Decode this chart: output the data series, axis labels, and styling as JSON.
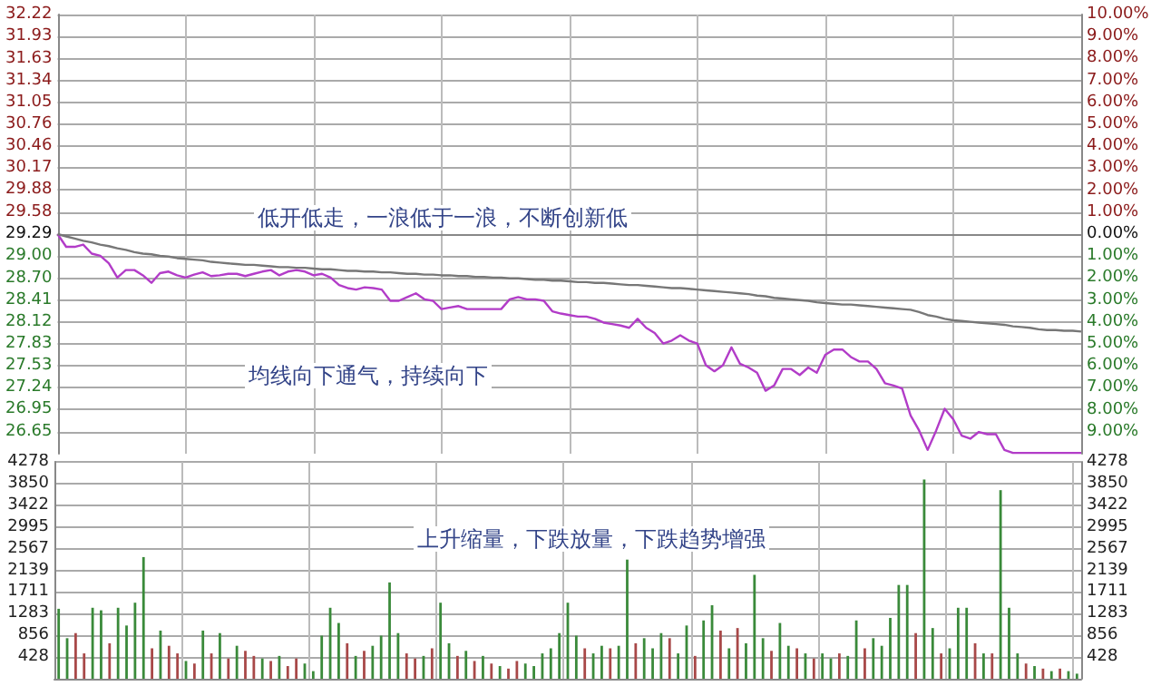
{
  "chart_data": [
    {
      "type": "line",
      "categories": [
        null,
        null,
        null,
        null,
        null,
        null,
        null,
        null,
        null,
        null,
        null,
        null,
        null,
        null,
        null,
        null,
        null,
        null,
        null,
        null,
        null,
        null,
        null,
        null,
        null,
        null,
        null,
        null,
        null,
        null,
        null,
        null,
        null,
        null,
        null,
        null,
        null,
        null,
        null,
        null,
        null,
        null,
        null,
        null,
        null,
        null,
        null,
        null,
        null,
        null,
        null,
        null,
        null,
        null,
        null,
        null,
        null,
        null,
        null,
        null,
        null,
        null,
        null,
        null,
        null,
        null,
        null,
        null,
        null,
        null,
        null,
        null,
        null,
        null,
        null,
        null,
        null,
        null,
        null,
        null,
        null,
        null,
        null,
        null,
        null,
        null,
        null,
        null,
        null,
        null,
        null,
        null,
        null,
        null,
        null,
        null,
        null,
        null,
        null,
        null,
        null,
        null,
        null,
        null,
        null,
        null,
        null,
        null,
        null,
        null,
        null,
        null,
        null,
        null,
        null,
        null,
        null,
        null,
        null,
        null,
        null
      ],
      "series": [
        {
          "color": "#b23cc8",
          "values": [
            29.29,
            29.12,
            29.12,
            29.15,
            29.03,
            29.0,
            28.9,
            28.71,
            28.81,
            28.81,
            28.74,
            28.64,
            28.77,
            28.79,
            28.74,
            28.71,
            28.75,
            28.78,
            28.73,
            28.74,
            28.76,
            28.76,
            28.73,
            28.76,
            28.79,
            28.81,
            28.74,
            28.79,
            28.81,
            28.79,
            28.74,
            28.76,
            28.71,
            28.61,
            28.57,
            28.55,
            28.58,
            28.57,
            28.55,
            28.4,
            28.4,
            28.45,
            28.5,
            28.42,
            28.4,
            28.29,
            28.31,
            28.33,
            28.29,
            28.29,
            28.29,
            28.29,
            28.29,
            28.42,
            28.45,
            28.42,
            28.42,
            28.4,
            28.26,
            28.23,
            28.21,
            28.19,
            28.19,
            28.16,
            28.11,
            28.09,
            28.07,
            28.04,
            28.16,
            28.04,
            27.97,
            27.83,
            27.87,
            27.94,
            27.87,
            27.83,
            27.54,
            27.46,
            27.54,
            27.78,
            27.56,
            27.51,
            27.44,
            27.2,
            27.27,
            27.49,
            27.49,
            27.41,
            27.51,
            27.44,
            27.68,
            27.75,
            27.75,
            27.65,
            27.59,
            27.59,
            27.49,
            27.3,
            27.27,
            27.23,
            26.87,
            26.67,
            26.41,
            26.67,
            26.96,
            26.82,
            26.6,
            26.56,
            26.65,
            26.62,
            26.62,
            26.41,
            26.37,
            26.37,
            26.37,
            26.37,
            26.37,
            26.37,
            26.37,
            26.37,
            26.37
          ]
        },
        {
          "color": "#777777",
          "values": [
            29.29,
            29.26,
            29.23,
            29.2,
            29.18,
            29.15,
            29.13,
            29.1,
            29.08,
            29.05,
            29.03,
            29.02,
            29.0,
            28.99,
            28.97,
            28.96,
            28.95,
            28.94,
            28.92,
            28.91,
            28.9,
            28.89,
            28.88,
            28.88,
            28.87,
            28.86,
            28.85,
            28.85,
            28.84,
            28.84,
            28.83,
            28.82,
            28.82,
            28.81,
            28.8,
            28.8,
            28.79,
            28.79,
            28.78,
            28.78,
            28.77,
            28.76,
            28.76,
            28.75,
            28.75,
            28.74,
            28.74,
            28.73,
            28.73,
            28.72,
            28.72,
            28.71,
            28.71,
            28.7,
            28.7,
            28.69,
            28.68,
            28.68,
            28.67,
            28.67,
            28.66,
            28.65,
            28.65,
            28.64,
            28.64,
            28.63,
            28.62,
            28.61,
            28.61,
            28.6,
            28.59,
            28.58,
            28.57,
            28.57,
            28.56,
            28.55,
            28.54,
            28.53,
            28.52,
            28.51,
            28.5,
            28.49,
            28.47,
            28.46,
            28.44,
            28.43,
            28.42,
            28.41,
            28.4,
            28.38,
            28.37,
            28.36,
            28.35,
            28.35,
            28.34,
            28.33,
            28.32,
            28.31,
            28.3,
            28.29,
            28.28,
            28.25,
            28.21,
            28.19,
            28.16,
            28.14,
            28.13,
            28.12,
            28.11,
            28.1,
            28.09,
            28.08,
            28.06,
            28.05,
            28.04,
            28.02,
            28.01,
            28.01,
            28.0,
            28.0,
            27.99
          ]
        }
      ],
      "ylim": [
        26.36,
        32.22
      ],
      "yticks": [
        26.65,
        26.95,
        27.24,
        27.53,
        27.83,
        28.12,
        28.41,
        {
          "value": 28.7,
          "label": "28.70"
        },
        {
          "value": 29,
          "label": "29.00"
        },
        29.29,
        29.58,
        29.88,
        30.17,
        30.46,
        30.76,
        31.05,
        31.34,
        31.63,
        31.93,
        32.22
      ],
      "y2lim": [
        -10,
        10
      ],
      "y2ticks": [
        {
          "value": -9,
          "label": "9.00%"
        },
        {
          "value": -8,
          "label": "8.00%"
        },
        {
          "value": -7,
          "label": "7.00%"
        },
        {
          "value": -6,
          "label": "6.00%"
        },
        {
          "value": -5,
          "label": "5.00%"
        },
        {
          "value": -4,
          "label": "4.00%"
        },
        {
          "value": -3,
          "label": "3.00%"
        },
        {
          "value": -2,
          "label": "2.00%"
        },
        {
          "value": -1,
          "label": "1.00%"
        },
        {
          "value": 0,
          "label": "0.00%"
        },
        {
          "value": 1,
          "label": "1.00%"
        },
        {
          "value": 2,
          "label": "2.00%"
        },
        {
          "value": 3,
          "label": "3.00%"
        },
        {
          "value": 4,
          "label": "4.00%"
        },
        {
          "value": 5,
          "label": "5.00%"
        },
        {
          "value": 6,
          "label": "6.00%"
        },
        {
          "value": 7,
          "label": "7.00%"
        },
        {
          "value": 8,
          "label": "8.00%"
        },
        {
          "value": 9,
          "label": "9.00%"
        },
        {
          "value": 10,
          "label": "10.00%"
        }
      ],
      "annotations": [
        "低开低走，一浪低于一浪，不断创新低",
        "均线向下通气，持续向下"
      ],
      "grid": true,
      "line_style": "solid",
      "tick_labels": "y"
    },
    {
      "type": "bar",
      "categories": [
        null,
        null,
        null,
        null,
        null,
        null,
        null,
        null,
        null,
        null,
        null,
        null,
        null,
        null,
        null,
        null,
        null,
        null,
        null,
        null,
        null,
        null,
        null,
        null,
        null,
        null,
        null,
        null,
        null,
        null,
        null,
        null,
        null,
        null,
        null,
        null,
        null,
        null,
        null,
        null,
        null,
        null,
        null,
        null,
        null,
        null,
        null,
        null,
        null,
        null,
        null,
        null,
        null,
        null,
        null,
        null,
        null,
        null,
        null,
        null,
        null,
        null,
        null,
        null,
        null,
        null,
        null,
        null,
        null,
        null,
        null,
        null,
        null,
        null,
        null,
        null,
        null,
        null,
        null,
        null,
        null,
        null,
        null,
        null,
        null,
        null,
        null,
        null,
        null,
        null,
        null,
        null,
        null,
        null,
        null,
        null,
        null,
        null,
        null,
        null,
        null,
        null,
        null,
        null,
        null,
        null,
        null,
        null,
        null,
        null,
        null,
        null,
        null,
        null,
        null,
        null,
        null,
        null,
        null,
        null,
        null
      ],
      "values": [
        1380,
        800,
        900,
        500,
        1400,
        1350,
        700,
        1400,
        1050,
        1500,
        2400,
        600,
        950,
        650,
        500,
        350,
        300,
        950,
        500,
        900,
        400,
        650,
        550,
        450,
        400,
        350,
        450,
        250,
        400,
        300,
        150,
        850,
        1400,
        1100,
        700,
        450,
        550,
        650,
        850,
        1900,
        900,
        500,
        400,
        450,
        600,
        1500,
        700,
        450,
        550,
        350,
        450,
        300,
        250,
        200,
        350,
        300,
        250,
        500,
        600,
        900,
        1500,
        850,
        600,
        500,
        650,
        600,
        650,
        2350,
        700,
        800,
        600,
        900,
        800,
        500,
        1050,
        450,
        1150,
        1450,
        950,
        600,
        1000,
        700,
        2050,
        800,
        550,
        1100,
        650,
        600,
        500,
        400,
        500,
        400,
        500,
        450,
        1150,
        600,
        800,
        650,
        1200,
        1850,
        1850,
        900,
        3930,
        1000,
        500,
        600,
        1400,
        1400,
        700,
        500,
        500,
        3720,
        1400,
        500,
        300,
        250,
        200,
        150,
        200,
        150,
        100
      ],
      "colors": [
        "#3a8a3a",
        "#3a8a3a",
        "#a84848",
        "#a84848",
        "#3a8a3a",
        "#3a8a3a",
        "#a84848",
        "#3a8a3a",
        "#3a8a3a",
        "#3a8a3a",
        "#3a8a3a",
        "#a84848",
        "#3a8a3a",
        "#a84848",
        "#a84848",
        "#3a8a3a",
        "#a84848",
        "#3a8a3a",
        "#a84848",
        "#3a8a3a",
        "#a84848",
        "#3a8a3a",
        "#a84848",
        "#a84848",
        "#3a8a3a",
        "#a84848",
        "#3a8a3a",
        "#a84848",
        "#a84848",
        "#3a8a3a",
        "#3a8a3a",
        "#3a8a3a",
        "#3a8a3a",
        "#3a8a3a",
        "#a84848",
        "#3a8a3a",
        "#a84848",
        "#3a8a3a",
        "#3a8a3a",
        "#3a8a3a",
        "#3a8a3a",
        "#a84848",
        "#a84848",
        "#3a8a3a",
        "#a84848",
        "#3a8a3a",
        "#3a8a3a",
        "#a84848",
        "#3a8a3a",
        "#a84848",
        "#3a8a3a",
        "#a84848",
        "#3a8a3a",
        "#a84848",
        "#a84848",
        "#3a8a3a",
        "#3a8a3a",
        "#3a8a3a",
        "#3a8a3a",
        "#3a8a3a",
        "#3a8a3a",
        "#3a8a3a",
        "#a84848",
        "#3a8a3a",
        "#3a8a3a",
        "#a84848",
        "#3a8a3a",
        "#3a8a3a",
        "#a84848",
        "#3a8a3a",
        "#3a8a3a",
        "#3a8a3a",
        "#a84848",
        "#3a8a3a",
        "#3a8a3a",
        "#a84848",
        "#3a8a3a",
        "#3a8a3a",
        "#a84848",
        "#3a8a3a",
        "#a84848",
        "#3a8a3a",
        "#3a8a3a",
        "#3a8a3a",
        "#a84848",
        "#3a8a3a",
        "#3a8a3a",
        "#a84848",
        "#3a8a3a",
        "#a84848",
        "#3a8a3a",
        "#3a8a3a",
        "#a84848",
        "#3a8a3a",
        "#3a8a3a",
        "#a84848",
        "#3a8a3a",
        "#3a8a3a",
        "#3a8a3a",
        "#3a8a3a",
        "#3a8a3a",
        "#a84848",
        "#3a8a3a",
        "#3a8a3a",
        "#a84848",
        "#3a8a3a",
        "#3a8a3a",
        "#3a8a3a",
        "#a84848",
        "#3a8a3a",
        "#a84848",
        "#3a8a3a",
        "#3a8a3a",
        "#3a8a3a",
        "#a84848",
        "#3a8a3a",
        "#a84848",
        "#3a8a3a",
        "#a84848",
        "#3a8a3a",
        "#3a8a3a"
      ],
      "ylim": [
        0,
        4278
      ],
      "yticks": [
        428,
        856,
        1283,
        1711,
        2139,
        2567,
        2995,
        3422,
        3850,
        4278
      ],
      "y2lim": [
        0,
        4278
      ],
      "y2ticks": [
        428,
        856,
        1283,
        1711,
        2139,
        2567,
        2995,
        3422,
        3850,
        4278
      ],
      "annotations": [
        "上升缩量，下跌放量，下跌趋势增强"
      ],
      "grid": true,
      "tick_labels": "y"
    }
  ]
}
